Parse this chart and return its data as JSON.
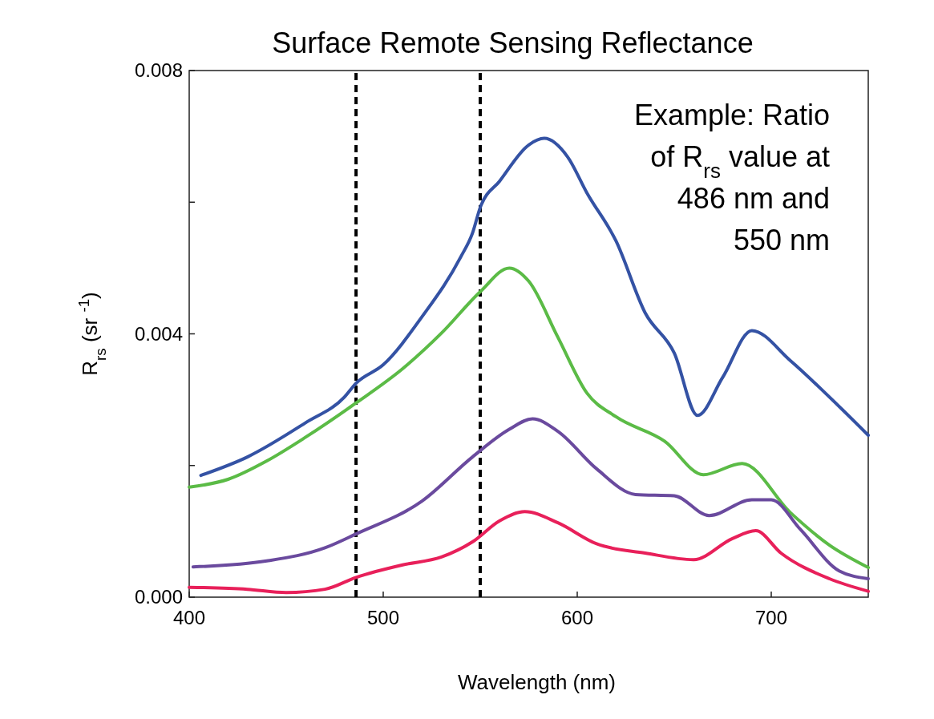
{
  "chart_data": {
    "type": "line",
    "title": "Surface Remote Sensing Reflectance",
    "xlabel": "Wavelength (nm)",
    "ylabel": "R$_{rs}$ (sr $^{-1}$)",
    "annotations": [
      "Example: Ratio\nof R$_{rs}$ value at\n486 nm and\n550 nm"
    ],
    "xlim": [
      400,
      750
    ],
    "xticks": [
      400,
      500,
      600,
      700
    ],
    "ylim": [
      0,
      0.008
    ],
    "yticks": [
      {
        "value": 0,
        "label": "0.000"
      },
      {
        "value": 0.002,
        "label": null
      },
      0.004,
      {
        "value": 0.006,
        "label": null
      },
      0.008
    ],
    "grid": false,
    "marker": "none",
    "line_style": "solid",
    "ref_lines": [
      {
        "axis": "x",
        "value": 486,
        "label": null,
        "color": "#000000",
        "line_style": "dashed"
      },
      {
        "axis": "x",
        "value": 550,
        "label": null,
        "color": "#000000",
        "line_style": "dashed"
      }
    ],
    "series": [
      {
        "color": "#3452a4",
        "x": [
          406,
          430,
          460,
          480,
          486,
          500,
          520,
          540,
          546,
          550,
          560,
          575,
          583,
          595,
          605,
          620,
          635,
          650,
          662,
          675,
          690,
          710,
          730,
          750
        ],
        "values": [
          0.00185,
          0.00213,
          0.00265,
          0.00304,
          0.00325,
          0.00353,
          0.00426,
          0.00517,
          0.00553,
          0.00592,
          0.00632,
          0.00687,
          0.00697,
          0.00669,
          0.00614,
          0.00541,
          0.00432,
          0.00371,
          0.00276,
          0.00334,
          0.00405,
          0.00359,
          0.00304,
          0.00246
        ]
      },
      {
        "color": "#5bbb46",
        "x": [
          400,
          420,
          440,
          460,
          486,
          510,
          530,
          550,
          565,
          575,
          590,
          605,
          620,
          645,
          665,
          685,
          710,
          730,
          750
        ],
        "values": [
          0.00167,
          0.00179,
          0.00207,
          0.00243,
          0.00295,
          0.00347,
          0.00401,
          0.00464,
          0.005,
          0.0048,
          0.00395,
          0.0031,
          0.00274,
          0.00237,
          0.00186,
          0.00203,
          0.00128,
          0.00079,
          0.00045
        ]
      },
      {
        "color": "#6a4a9e",
        "x": [
          402,
          440,
          470,
          486,
          520,
          546,
          565,
          577,
          590,
          610,
          630,
          650,
          668,
          690,
          700,
          715,
          735,
          750
        ],
        "values": [
          0.00046,
          0.00055,
          0.00075,
          0.00096,
          0.00146,
          0.00213,
          0.00255,
          0.00271,
          0.00252,
          0.00195,
          0.00156,
          0.00154,
          0.00124,
          0.00148,
          0.00148,
          0.00103,
          0.0004,
          0.00028
        ]
      },
      {
        "color": "#e8205a",
        "x": [
          400,
          430,
          450,
          470,
          486,
          510,
          530,
          546,
          560,
          573,
          590,
          610,
          635,
          660,
          680,
          692,
          705,
          730,
          750
        ],
        "values": [
          0.00015,
          0.00012,
          7e-05,
          0.00012,
          0.0003,
          0.00049,
          0.00061,
          0.00084,
          0.00116,
          0.0013,
          0.00113,
          0.00081,
          0.00067,
          0.00057,
          0.00089,
          0.00101,
          0.00067,
          0.00028,
          9e-05
        ]
      }
    ]
  }
}
